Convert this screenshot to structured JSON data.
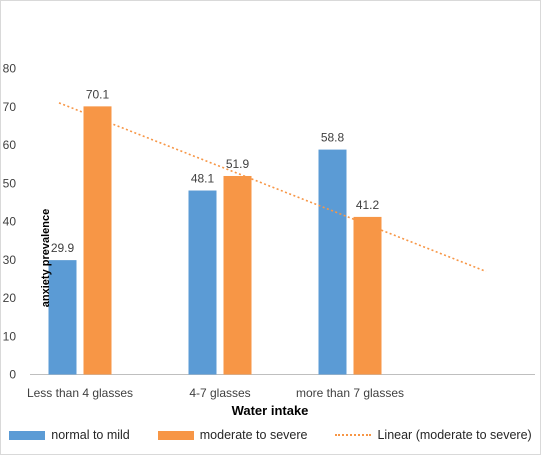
{
  "chart_data": {
    "type": "bar",
    "title": "",
    "xlabel": "Water intake",
    "ylabel": "anxiety prevalence",
    "categories": [
      "Less than 4 glasses",
      "4-7 glasses",
      "more than 7 glasses"
    ],
    "series": [
      {
        "name": "normal to mild",
        "values": [
          29.9,
          48.1,
          58.8
        ],
        "color": "#5B9BD5"
      },
      {
        "name": "moderate to severe",
        "values": [
          70.1,
          51.9,
          41.2
        ],
        "color": "#F79646"
      }
    ],
    "trendline": {
      "name": "Linear (moderate to severe)",
      "series": "moderate to severe",
      "type": "linear",
      "style": "dotted",
      "color": "#F79646"
    },
    "ylim": [
      0,
      80
    ],
    "yticks": [
      0,
      10,
      20,
      30,
      40,
      50,
      60,
      70,
      80
    ],
    "grid": false,
    "legend_position": "bottom"
  }
}
